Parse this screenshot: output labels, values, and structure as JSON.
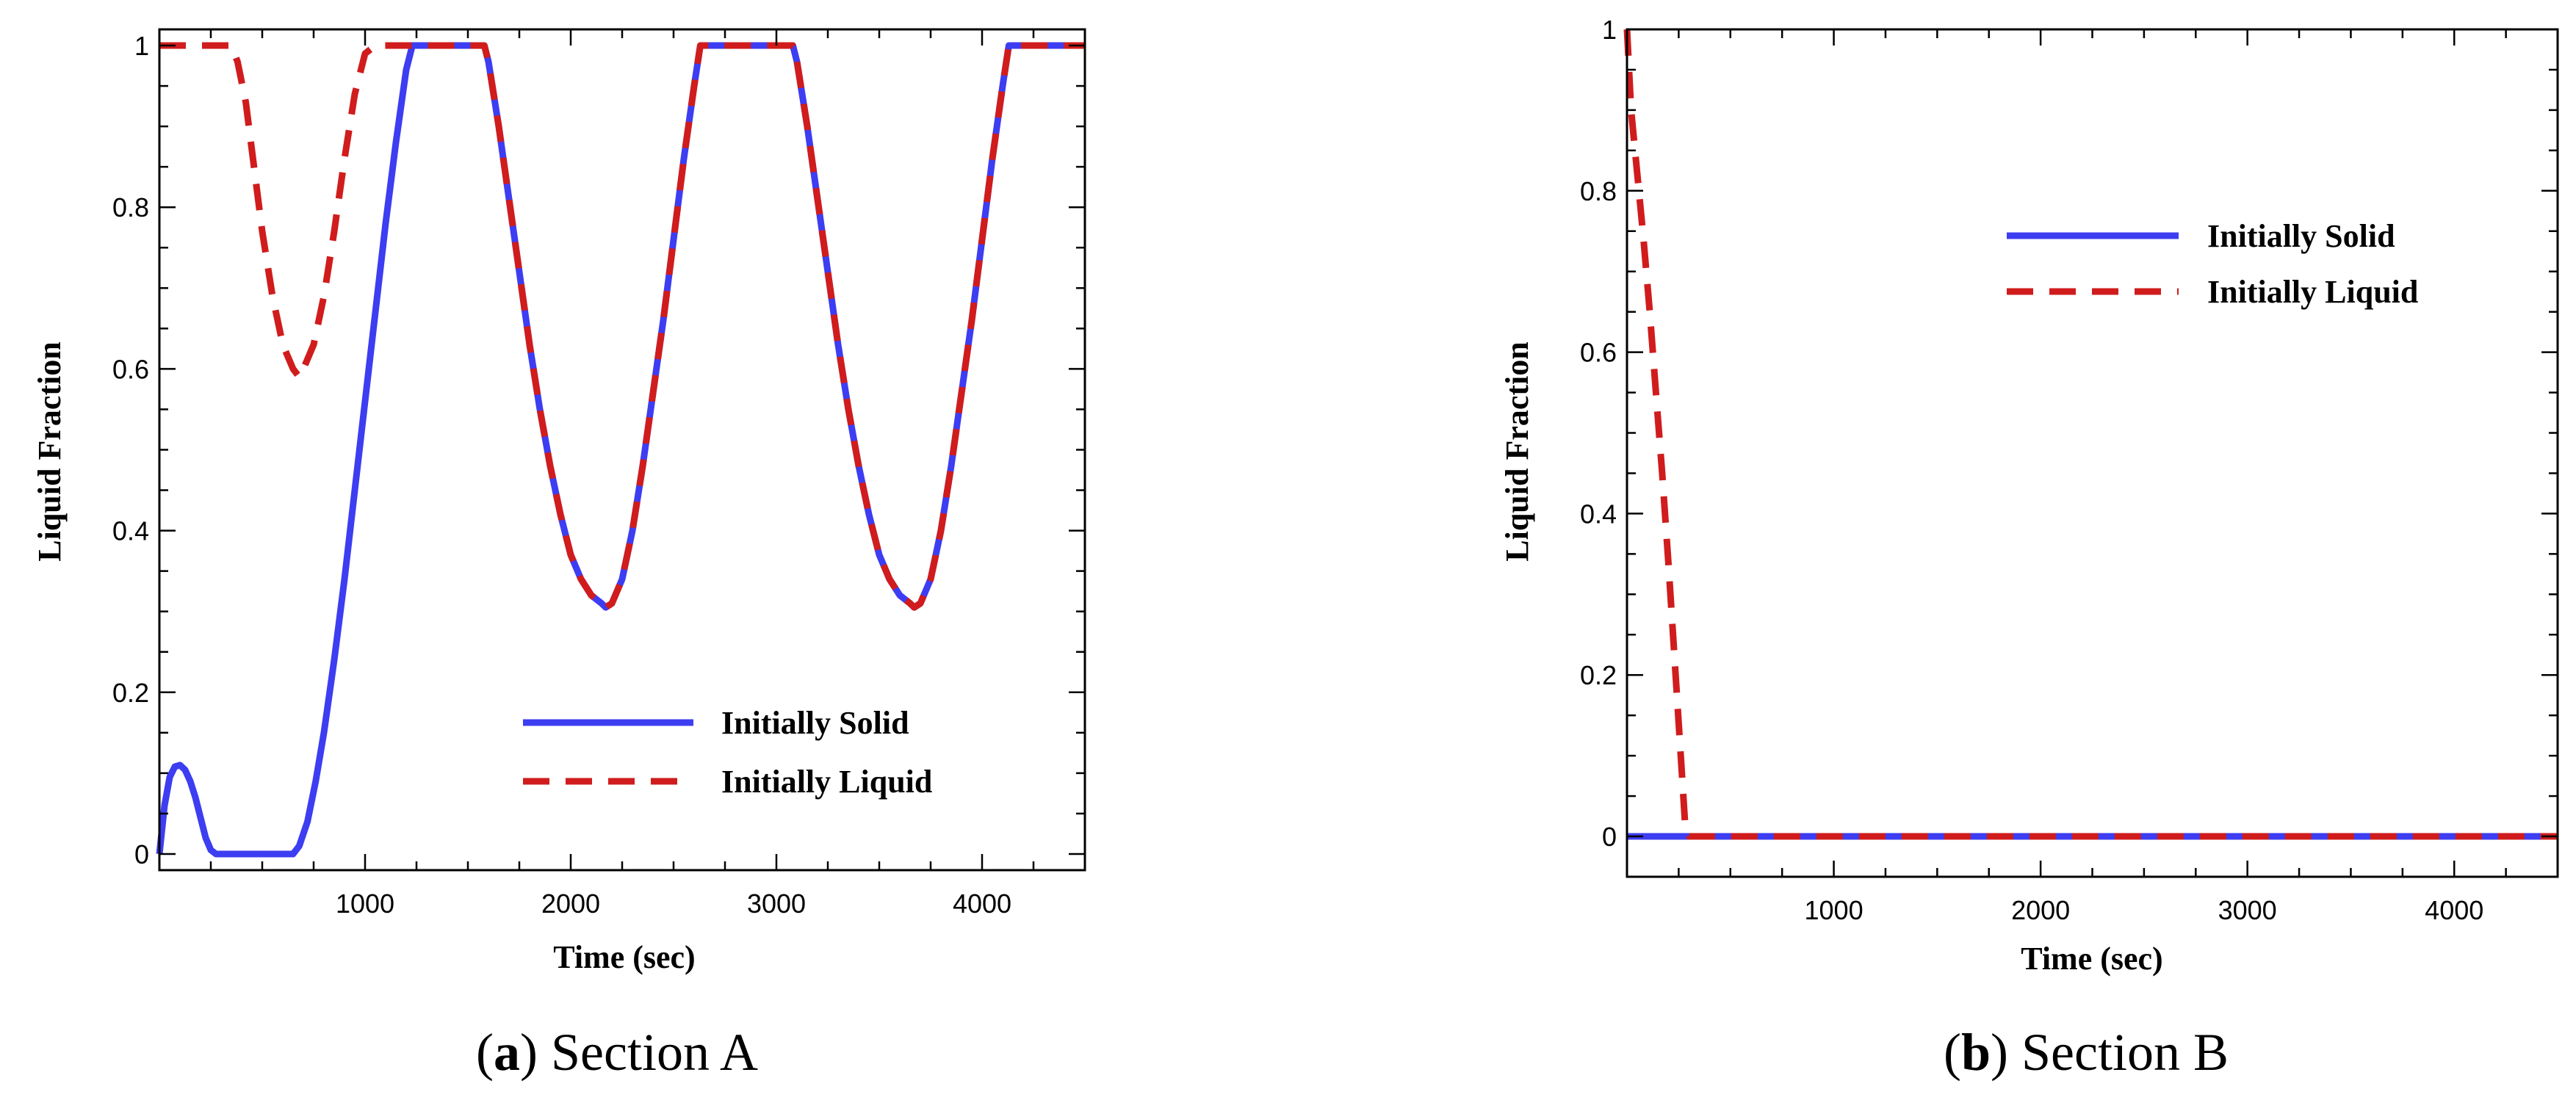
{
  "colors": {
    "solid": "#3d3df2",
    "liquid": "#d01c1c",
    "axis": "#000000"
  },
  "chart_data": [
    {
      "type": "line",
      "caption_letter": "a",
      "caption_text": "Section A",
      "xlabel": "Time (sec)",
      "ylabel": "Liquid Fraction",
      "xlim": [
        0,
        4500
      ],
      "ylim": [
        -0.02,
        1.02
      ],
      "xticks": [
        1000,
        2000,
        3000,
        4000
      ],
      "xtick_labels": [
        "1000",
        "2000",
        "3000",
        "4000"
      ],
      "yticks": [
        0,
        0.2,
        0.4,
        0.6,
        0.8,
        1
      ],
      "ytick_labels": [
        "0",
        "0.2",
        "0.4",
        "0.6",
        "0.8",
        "1"
      ],
      "legend": {
        "placement": "lower-right",
        "entries": [
          "Initially Solid",
          "Initially Liquid"
        ]
      },
      "series": [
        {
          "name": "Initially Solid",
          "style": "solid",
          "x": [
            0,
            25,
            50,
            75,
            100,
            125,
            150,
            175,
            200,
            225,
            250,
            275,
            300,
            650,
            680,
            720,
            760,
            800,
            850,
            900,
            950,
            1000,
            1050,
            1100,
            1150,
            1200,
            1230,
            1580,
            1600,
            1650,
            1700,
            1750,
            1800,
            1850,
            1900,
            1950,
            2000,
            2050,
            2100,
            2150,
            2170,
            2200,
            2250,
            2300,
            2350,
            2400,
            2450,
            2500,
            2550,
            2600,
            2630,
            3080,
            3100,
            3150,
            3200,
            3250,
            3300,
            3350,
            3400,
            3450,
            3500,
            3550,
            3600,
            3650,
            3670,
            3700,
            3750,
            3800,
            3850,
            3900,
            3950,
            4000,
            4050,
            4100,
            4130,
            4500
          ],
          "y": [
            0,
            0.06,
            0.095,
            0.108,
            0.11,
            0.104,
            0.09,
            0.07,
            0.045,
            0.02,
            0.005,
            0.0,
            0,
            0,
            0.01,
            0.04,
            0.09,
            0.15,
            0.24,
            0.34,
            0.45,
            0.56,
            0.67,
            0.78,
            0.88,
            0.97,
            1,
            1,
            0.98,
            0.9,
            0.81,
            0.72,
            0.63,
            0.55,
            0.48,
            0.42,
            0.37,
            0.34,
            0.32,
            0.31,
            0.305,
            0.31,
            0.34,
            0.4,
            0.48,
            0.57,
            0.66,
            0.76,
            0.86,
            0.95,
            1,
            1,
            0.98,
            0.9,
            0.81,
            0.72,
            0.63,
            0.55,
            0.48,
            0.42,
            0.37,
            0.34,
            0.32,
            0.31,
            0.305,
            0.31,
            0.34,
            0.4,
            0.48,
            0.57,
            0.66,
            0.76,
            0.86,
            0.95,
            1,
            1
          ]
        },
        {
          "name": "Initially Liquid",
          "style": "dashed",
          "x": [
            0,
            350,
            380,
            420,
            460,
            500,
            550,
            600,
            650,
            680,
            700,
            750,
            800,
            850,
            900,
            950,
            1000,
            1050,
            1080,
            1230,
            1580,
            1600,
            1650,
            1700,
            1750,
            1800,
            1850,
            1900,
            1950,
            2000,
            2050,
            2100,
            2150,
            2170,
            2200,
            2250,
            2300,
            2350,
            2400,
            2450,
            2500,
            2550,
            2600,
            2630,
            3080,
            3100,
            3150,
            3200,
            3250,
            3300,
            3350,
            3400,
            3450,
            3500,
            3550,
            3600,
            3650,
            3670,
            3700,
            3750,
            3800,
            3850,
            3900,
            3950,
            4000,
            4050,
            4100,
            4130,
            4500
          ],
          "y": [
            1,
            1,
            0.98,
            0.93,
            0.85,
            0.77,
            0.69,
            0.63,
            0.6,
            0.59,
            0.6,
            0.63,
            0.69,
            0.77,
            0.86,
            0.94,
            0.99,
            1,
            1,
            1,
            1,
            0.98,
            0.9,
            0.81,
            0.72,
            0.63,
            0.55,
            0.48,
            0.42,
            0.37,
            0.34,
            0.32,
            0.31,
            0.305,
            0.31,
            0.34,
            0.4,
            0.48,
            0.57,
            0.66,
            0.76,
            0.86,
            0.95,
            1,
            1,
            0.98,
            0.9,
            0.81,
            0.72,
            0.63,
            0.55,
            0.48,
            0.42,
            0.37,
            0.34,
            0.32,
            0.31,
            0.305,
            0.31,
            0.34,
            0.4,
            0.48,
            0.57,
            0.66,
            0.76,
            0.86,
            0.95,
            1,
            1
          ]
        }
      ]
    },
    {
      "type": "line",
      "caption_letter": "b",
      "caption_text": "Section B",
      "xlabel": "Time (sec)",
      "ylabel": "Liquid Fraction",
      "xlim": [
        0,
        4500
      ],
      "ylim": [
        -0.05,
        1.0
      ],
      "xticks": [
        1000,
        2000,
        3000,
        4000
      ],
      "xtick_labels": [
        "1000",
        "2000",
        "3000",
        "4000"
      ],
      "yticks": [
        0,
        0.2,
        0.4,
        0.6,
        0.8,
        1
      ],
      "ytick_labels": [
        "0",
        "0.2",
        "0.4",
        "0.6",
        "0.8",
        "1"
      ],
      "legend": {
        "placement": "top-right",
        "entries": [
          "Initially Solid",
          "Initially Liquid"
        ]
      },
      "series": [
        {
          "name": "Initially Solid",
          "style": "solid",
          "x": [
            0,
            4500
          ],
          "y": [
            0,
            0
          ]
        },
        {
          "name": "Initially Liquid",
          "style": "dashed",
          "x": [
            0,
            20,
            50,
            80,
            110,
            140,
            170,
            200,
            230,
            260,
            280,
            300,
            4500
          ],
          "y": [
            1,
            0.9,
            0.82,
            0.74,
            0.65,
            0.55,
            0.45,
            0.34,
            0.22,
            0.1,
            0.02,
            0,
            0
          ]
        }
      ]
    }
  ]
}
